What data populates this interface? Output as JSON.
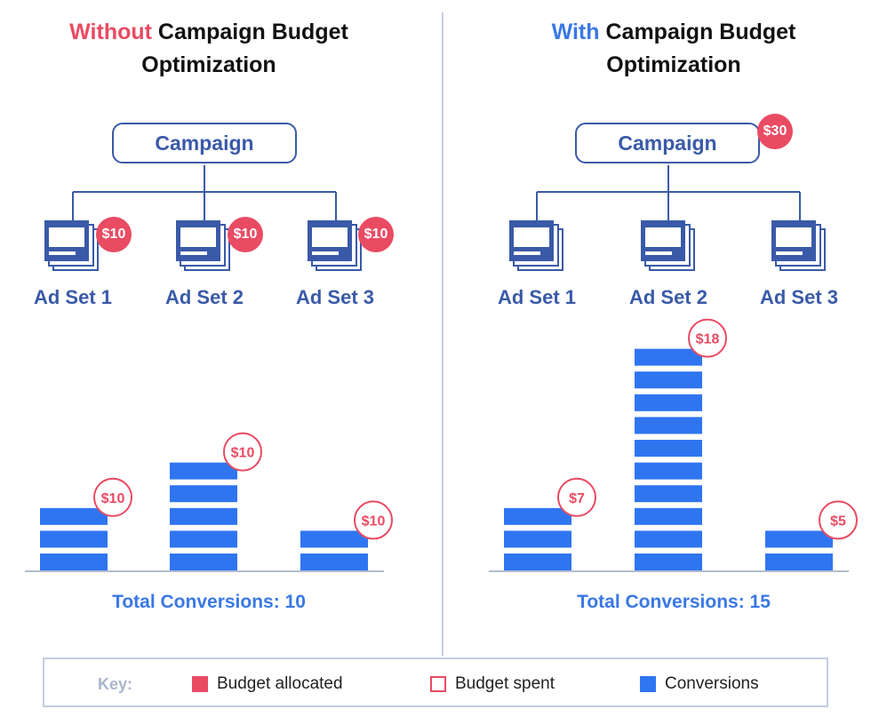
{
  "colors": {
    "brand_blue": "#3a5aa8",
    "conversion_blue": "#2f75f0",
    "total_blue": "#3a78e6",
    "budget_red": "#e94b63"
  },
  "left": {
    "title_highlight": "Without",
    "title_rest": "Campaign Budget",
    "title_line2": "Optimization",
    "campaign_label": "Campaign",
    "adsets": [
      {
        "label": "Ad Set 1",
        "allocated": "$10"
      },
      {
        "label": "Ad Set 2",
        "allocated": "$10"
      },
      {
        "label": "Ad Set 3",
        "allocated": "$10"
      }
    ],
    "total_conversions": "Total Conversions: 10"
  },
  "right": {
    "title_highlight": "With",
    "title_rest": "Campaign Budget",
    "title_line2": "Optimization",
    "campaign_label": "Campaign",
    "campaign_allocated": "$30",
    "adsets": [
      {
        "label": "Ad Set 1"
      },
      {
        "label": "Ad Set 2"
      },
      {
        "label": "Ad Set 3"
      }
    ],
    "total_conversions": "Total Conversions: 15"
  },
  "chart_data": [
    {
      "type": "bar",
      "categories": [
        "Ad Set 1",
        "Ad Set 2",
        "Ad Set 3"
      ],
      "values": [
        3,
        5,
        2
      ],
      "spent_labels": [
        "$10",
        "$10",
        "$10"
      ]
    },
    {
      "type": "bar",
      "categories": [
        "Ad Set 1",
        "Ad Set 2",
        "Ad Set 3"
      ],
      "values": [
        3,
        10,
        2
      ],
      "spent_labels": [
        "$7",
        "$18",
        "$5"
      ]
    }
  ],
  "key": {
    "title": "Key:",
    "budget_allocated": "Budget allocated",
    "budget_spent": "Budget spent",
    "conversions": "Conversions"
  }
}
